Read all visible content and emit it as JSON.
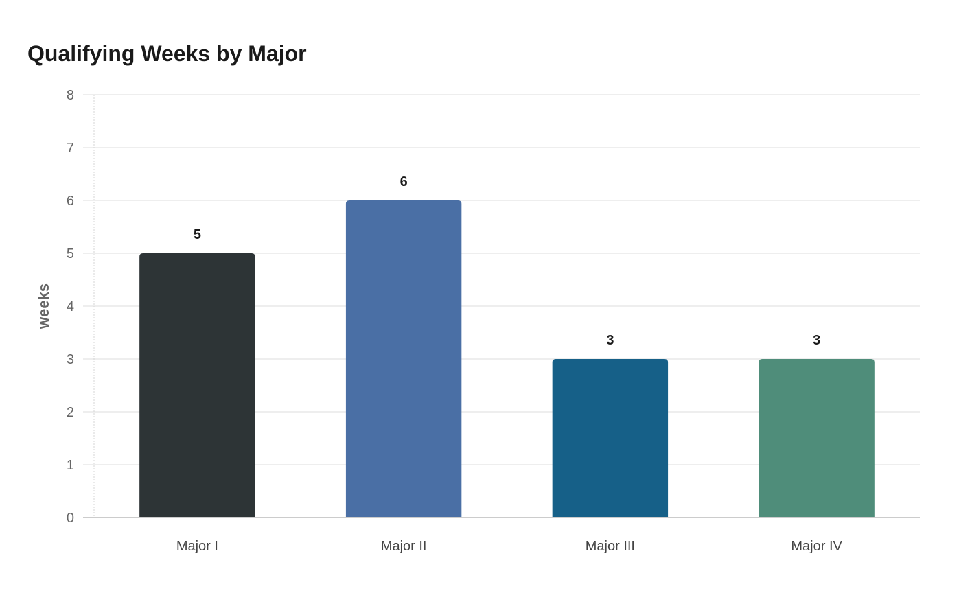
{
  "chart_data": {
    "type": "bar",
    "title": "Qualifying Weeks by Major",
    "xlabel": "",
    "ylabel": "weeks",
    "categories": [
      "Major I",
      "Major II",
      "Major III",
      "Major IV"
    ],
    "values": [
      5,
      6,
      3,
      3
    ],
    "colors": [
      "#2d3436",
      "#4a6fa5",
      "#166088",
      "#4f8d7a"
    ],
    "ylim": [
      0,
      8
    ],
    "yticks": [
      0,
      1,
      2,
      3,
      4,
      5,
      6,
      7,
      8
    ],
    "grid": true,
    "data_labels": true
  }
}
